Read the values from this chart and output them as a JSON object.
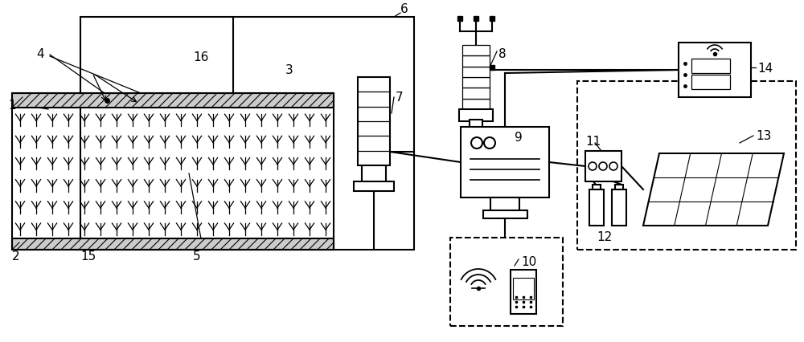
{
  "background": "#ffffff",
  "line_color": "#000000",
  "line_width": 1.5,
  "label_fontsize": 11,
  "fig_width": 10.0,
  "fig_height": 4.27
}
